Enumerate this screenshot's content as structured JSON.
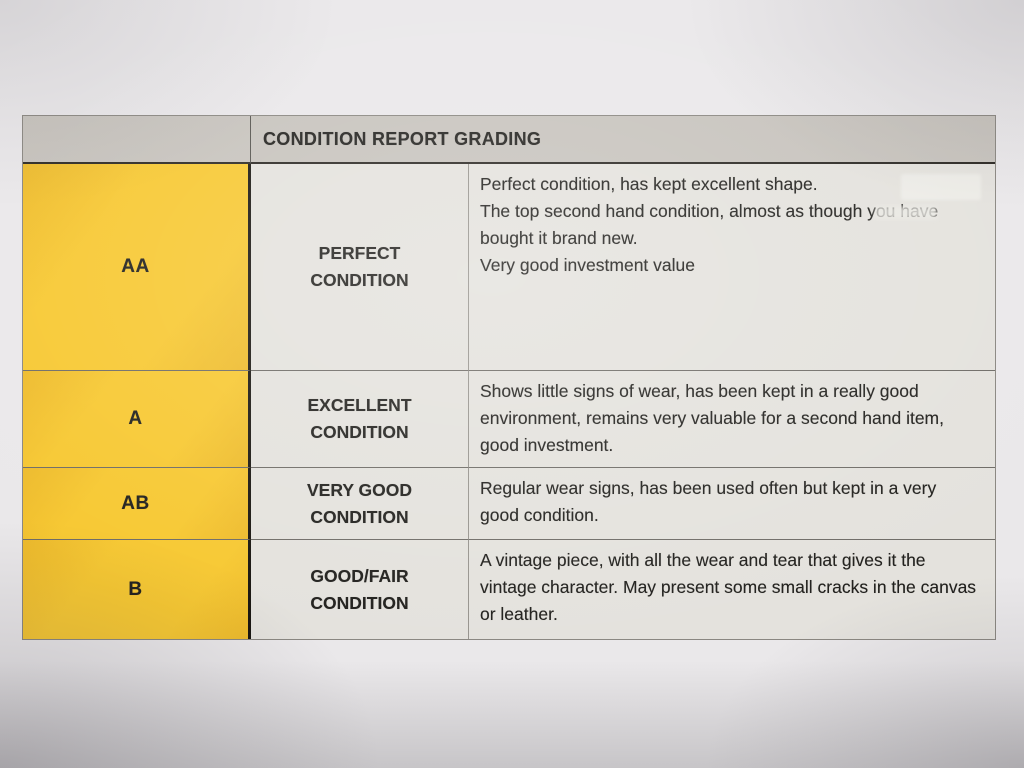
{
  "document": {
    "header": "CONDITION REPORT GRADING",
    "rows": [
      {
        "grade": "AA",
        "label": "PERFECT CONDITION",
        "paragraphs": [
          "Perfect condition, has kept excellent shape.",
          "The top second hand condition, almost as though you have bought it brand new.",
          "Very good investment value"
        ]
      },
      {
        "grade": "A",
        "label": "EXCELLENT CONDITION",
        "paragraphs": [
          "Shows little signs of wear, has been kept in a really good environment, remains very valuable for a second hand item, good investment."
        ]
      },
      {
        "grade": "AB",
        "label": "VERY GOOD CONDITION",
        "paragraphs": [
          "Regular wear signs, has been used often but kept in a very good condition."
        ]
      },
      {
        "grade": "B",
        "label": "GOOD/FAIR CONDITION",
        "paragraphs": [
          "A vintage piece, with all the wear and tear that gives it the vintage character. May present some small cracks in the canvas or leather."
        ]
      }
    ]
  },
  "colors": {
    "paper": "#eae8ea",
    "header_bg": "#c7c3bd",
    "cell_bg": "#e4e2dd",
    "yellow": "#f7c831",
    "yellow_deep": "#edba2b",
    "text": "#21201d",
    "line": "#6e6b66",
    "thick_line": "#17140f"
  }
}
